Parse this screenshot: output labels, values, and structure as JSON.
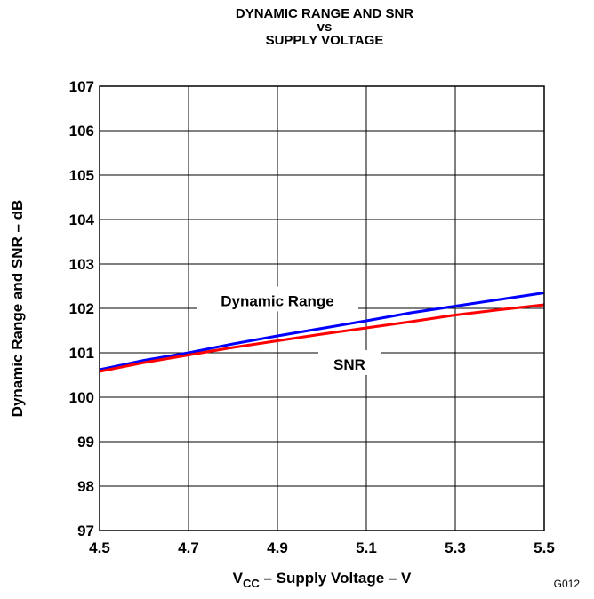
{
  "chart_data": {
    "type": "line",
    "title": "DYNAMIC RANGE AND SNR",
    "title_line2": "vs",
    "title_line3": "SUPPLY VOLTAGE",
    "xlabel_prefix": "V",
    "xlabel_sub": "CC",
    "xlabel_rest": " – Supply Voltage – V",
    "ylabel": "Dynamic Range and SNR – dB",
    "xlim": [
      4.5,
      5.5
    ],
    "ylim": [
      97,
      107
    ],
    "x_ticks": [
      "4.5",
      "4.7",
      "4.9",
      "5.1",
      "5.3",
      "5.5"
    ],
    "y_ticks": [
      "97",
      "98",
      "99",
      "100",
      "101",
      "102",
      "103",
      "104",
      "105",
      "106",
      "107"
    ],
    "grid": true,
    "series": [
      {
        "name": "Dynamic Range",
        "color": "#0000ff",
        "x": [
          4.5,
          4.6,
          4.7,
          4.8,
          4.9,
          5.0,
          5.1,
          5.2,
          5.3,
          5.4,
          5.5
        ],
        "y": [
          100.62,
          100.83,
          101.0,
          101.2,
          101.38,
          101.55,
          101.72,
          101.9,
          102.05,
          102.2,
          102.35
        ]
      },
      {
        "name": "SNR",
        "color": "#ff0000",
        "x": [
          4.5,
          4.6,
          4.7,
          4.8,
          4.9,
          5.0,
          5.1,
          5.2,
          5.3,
          5.4,
          5.5
        ],
        "y": [
          100.58,
          100.78,
          100.95,
          101.12,
          101.27,
          101.42,
          101.56,
          101.7,
          101.85,
          101.97,
          102.08
        ]
      }
    ],
    "annotations": [
      {
        "text": "Dynamic Range",
        "series": "Dynamic Range"
      },
      {
        "text": "SNR",
        "series": "SNR"
      }
    ],
    "figure_id": "G012"
  }
}
